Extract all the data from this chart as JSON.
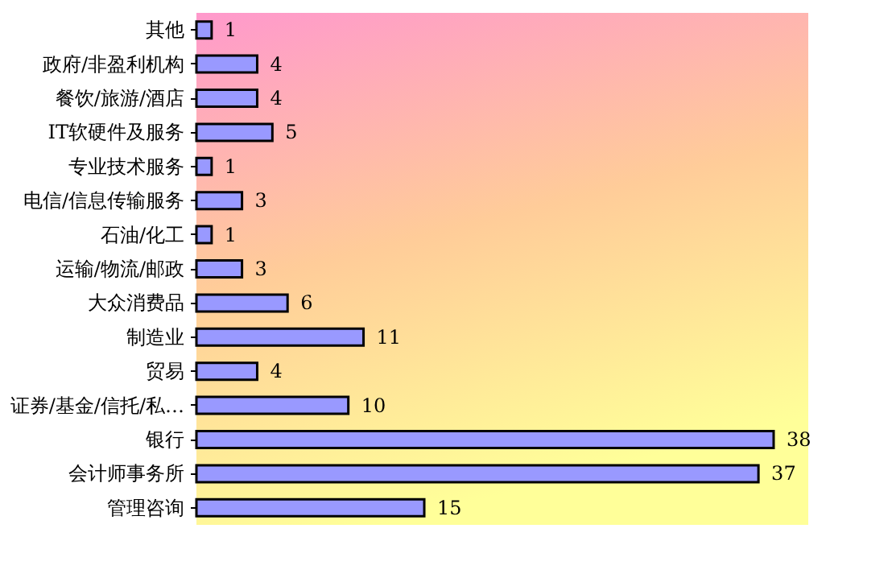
{
  "chart_data": {
    "type": "bar",
    "orientation": "horizontal",
    "categories": [
      "其他",
      "政府/非盈利机构",
      "餐饮/旅游/酒店",
      "IT软硬件及服务",
      "专业技术服务",
      "电信/信息传输服务",
      "石油/化工",
      "运输/物流/邮政",
      "大众消费品",
      "制造业",
      "贸易",
      "证券/基金/信托/私…",
      "银行",
      "会计师事务所",
      "管理咨询"
    ],
    "values": [
      1,
      4,
      4,
      5,
      1,
      3,
      1,
      3,
      6,
      11,
      4,
      10,
      38,
      37,
      15
    ],
    "color": "#9999ff",
    "data_labels": true
  }
}
